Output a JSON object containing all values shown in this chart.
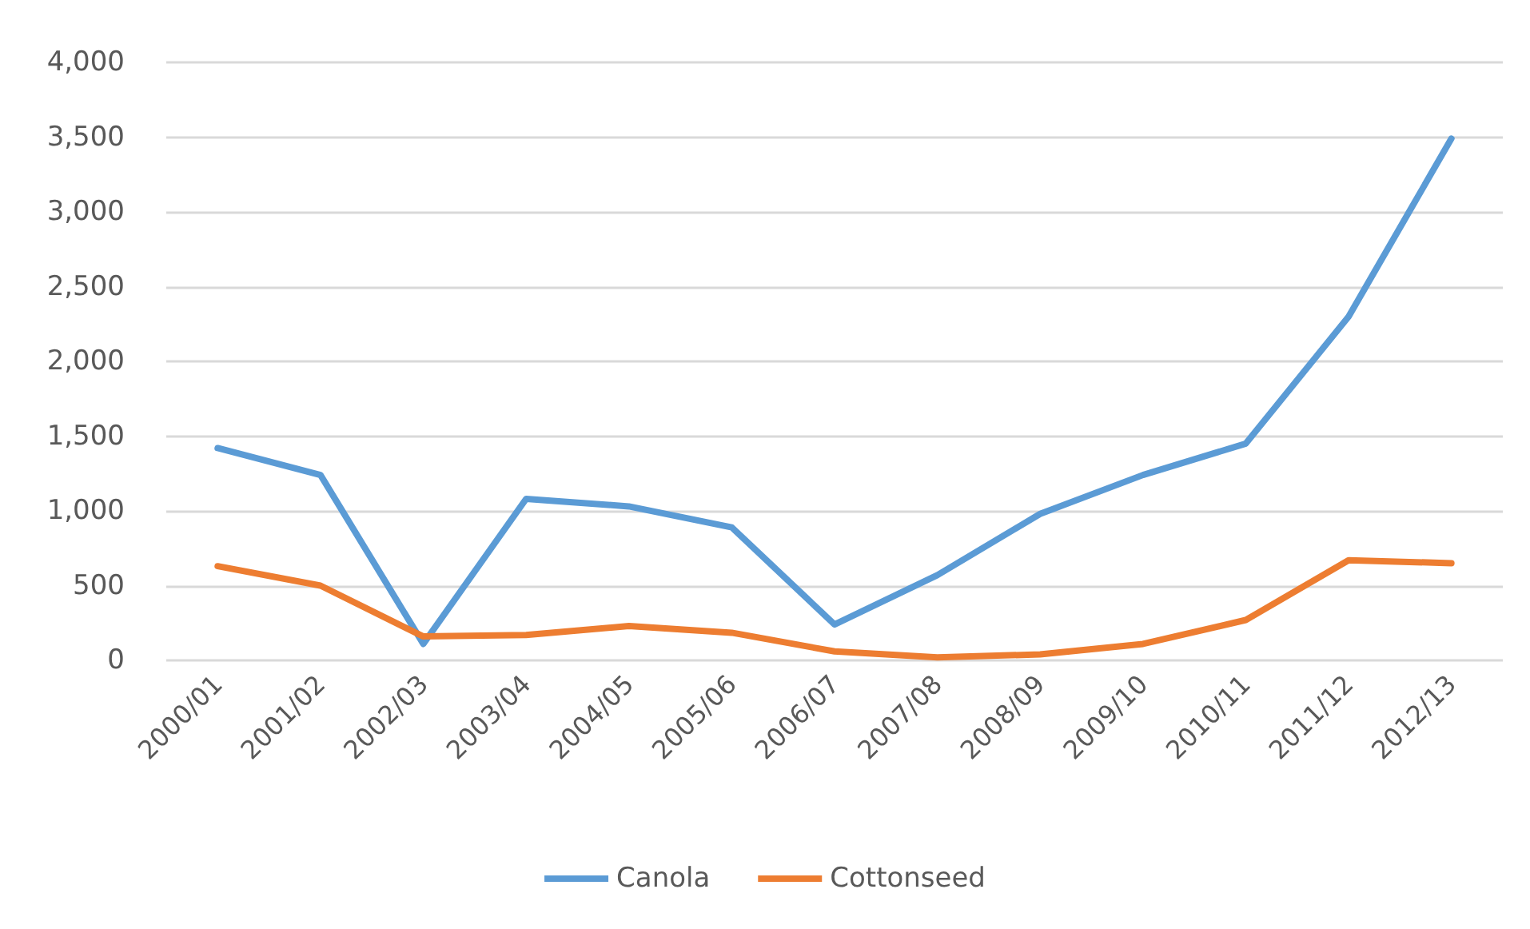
{
  "chart_data": {
    "type": "line",
    "categories": [
      "2000/01",
      "2001/02",
      "2002/03",
      "2003/04",
      "2004/05",
      "2005/06",
      "2006/07",
      "2007/08",
      "2008/09",
      "2009/10",
      "2010/11",
      "2011/12",
      "2012/13"
    ],
    "series": [
      {
        "name": "Canola",
        "color": "#5b9bd5",
        "values": [
          1420,
          1240,
          110,
          1080,
          1030,
          890,
          240,
          570,
          980,
          1240,
          1450,
          2300,
          3490
        ]
      },
      {
        "name": "Cottonseed",
        "color": "#ed7d31",
        "values": [
          630,
          500,
          160,
          170,
          230,
          185,
          60,
          20,
          40,
          110,
          270,
          670,
          650
        ]
      }
    ],
    "ylim": [
      0,
      4000
    ],
    "yticks": [
      {
        "value": 0,
        "label": "0"
      },
      {
        "value": 500,
        "label": "500"
      },
      {
        "value": 1000,
        "label": "1,000"
      },
      {
        "value": 1500,
        "label": "1,500"
      },
      {
        "value": 2000,
        "label": "2,000"
      },
      {
        "value": 2500,
        "label": "2,500"
      },
      {
        "value": 3000,
        "label": "3,000"
      },
      {
        "value": 3500,
        "label": "3,500"
      },
      {
        "value": 4000,
        "label": "4,000"
      }
    ],
    "grid": "y",
    "legend": "bottom",
    "marker": "none",
    "line_style": "solid"
  }
}
